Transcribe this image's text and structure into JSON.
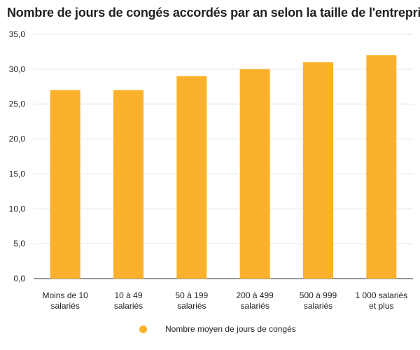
{
  "chart_data": {
    "type": "bar",
    "title": "Nombre de jours de congés accordés par an selon la taille de l'entreprise",
    "categories": [
      [
        "Moins de 10",
        "salariés"
      ],
      [
        "10 à 49",
        "salariés"
      ],
      [
        "50 à 199",
        "salariés"
      ],
      [
        "200 à 499",
        "salariés"
      ],
      [
        "500 à 999",
        "salariés"
      ],
      [
        "1 000 salariés",
        "et plus"
      ]
    ],
    "series": [
      {
        "name": "Nombre moyen de jours de congés",
        "values": [
          27,
          27,
          29,
          30,
          31,
          32
        ],
        "color": "#FBB12B"
      }
    ],
    "ylim": [
      0,
      35
    ],
    "yticks": [
      "0,0",
      "5,0",
      "10,0",
      "15,0",
      "20,0",
      "25,0",
      "30,0",
      "35,0"
    ],
    "ytick_values": [
      0,
      5,
      10,
      15,
      20,
      25,
      30,
      35
    ],
    "grid": true,
    "legend_position": "bottom"
  }
}
